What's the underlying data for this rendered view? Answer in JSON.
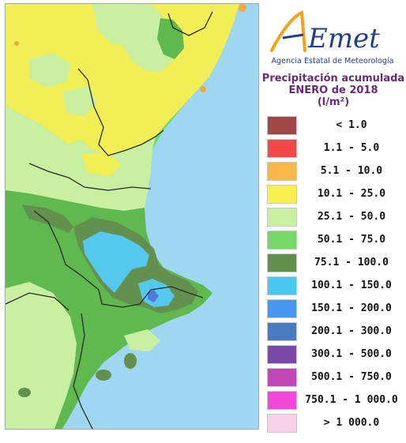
{
  "map": {
    "colors": {
      "sea": "#9fd6f2",
      "land_base": "#77d86a",
      "dry": "#f2ee55",
      "moderate": "#c8f0a0",
      "wet": "#5fb94e",
      "very_wet": "#63904e",
      "heavy": "#55c8ee",
      "very_heavy": "#4d7ae0",
      "spot_orange": "#f5a83a"
    }
  },
  "brand": {
    "logo_text": "AEmet",
    "agency_name": "Agencia Estatal de Meteorología",
    "logo_colors": {
      "text": "#1f3e8c",
      "accent": "#f3a21a"
    }
  },
  "title": {
    "line1": "Precipitación acumulada",
    "line2": "ENERO de 2018",
    "unit": "(l/m²)"
  },
  "legend": [
    {
      "label": "< 1.0",
      "color": "#a04848"
    },
    {
      "label": "1.1 - 5.0",
      "color": "#f24848"
    },
    {
      "label": "5.1 - 10.0",
      "color": "#f8b84a"
    },
    {
      "label": "10.1 - 25.0",
      "color": "#f8f04c"
    },
    {
      "label": "25.1 - 50.0",
      "color": "#c8f0a0"
    },
    {
      "label": "50.1 - 75.0",
      "color": "#77d86a"
    },
    {
      "label": "75.1 - 100.0",
      "color": "#638f4e"
    },
    {
      "label": "100.1 - 150.0",
      "color": "#48c8ee"
    },
    {
      "label": "150.1 - 200.0",
      "color": "#4898f0"
    },
    {
      "label": "200.1 - 300.0",
      "color": "#4a7ac0"
    },
    {
      "label": "300.1 - 500.0",
      "color": "#7a48a8"
    },
    {
      "label": "500.1 - 750.0",
      "color": "#c048b8"
    },
    {
      "label": "750.1 - 1 000.0",
      "color": "#f048d8"
    },
    {
      "label": "> 1 000.0",
      "color": "#f8d0e8"
    }
  ]
}
